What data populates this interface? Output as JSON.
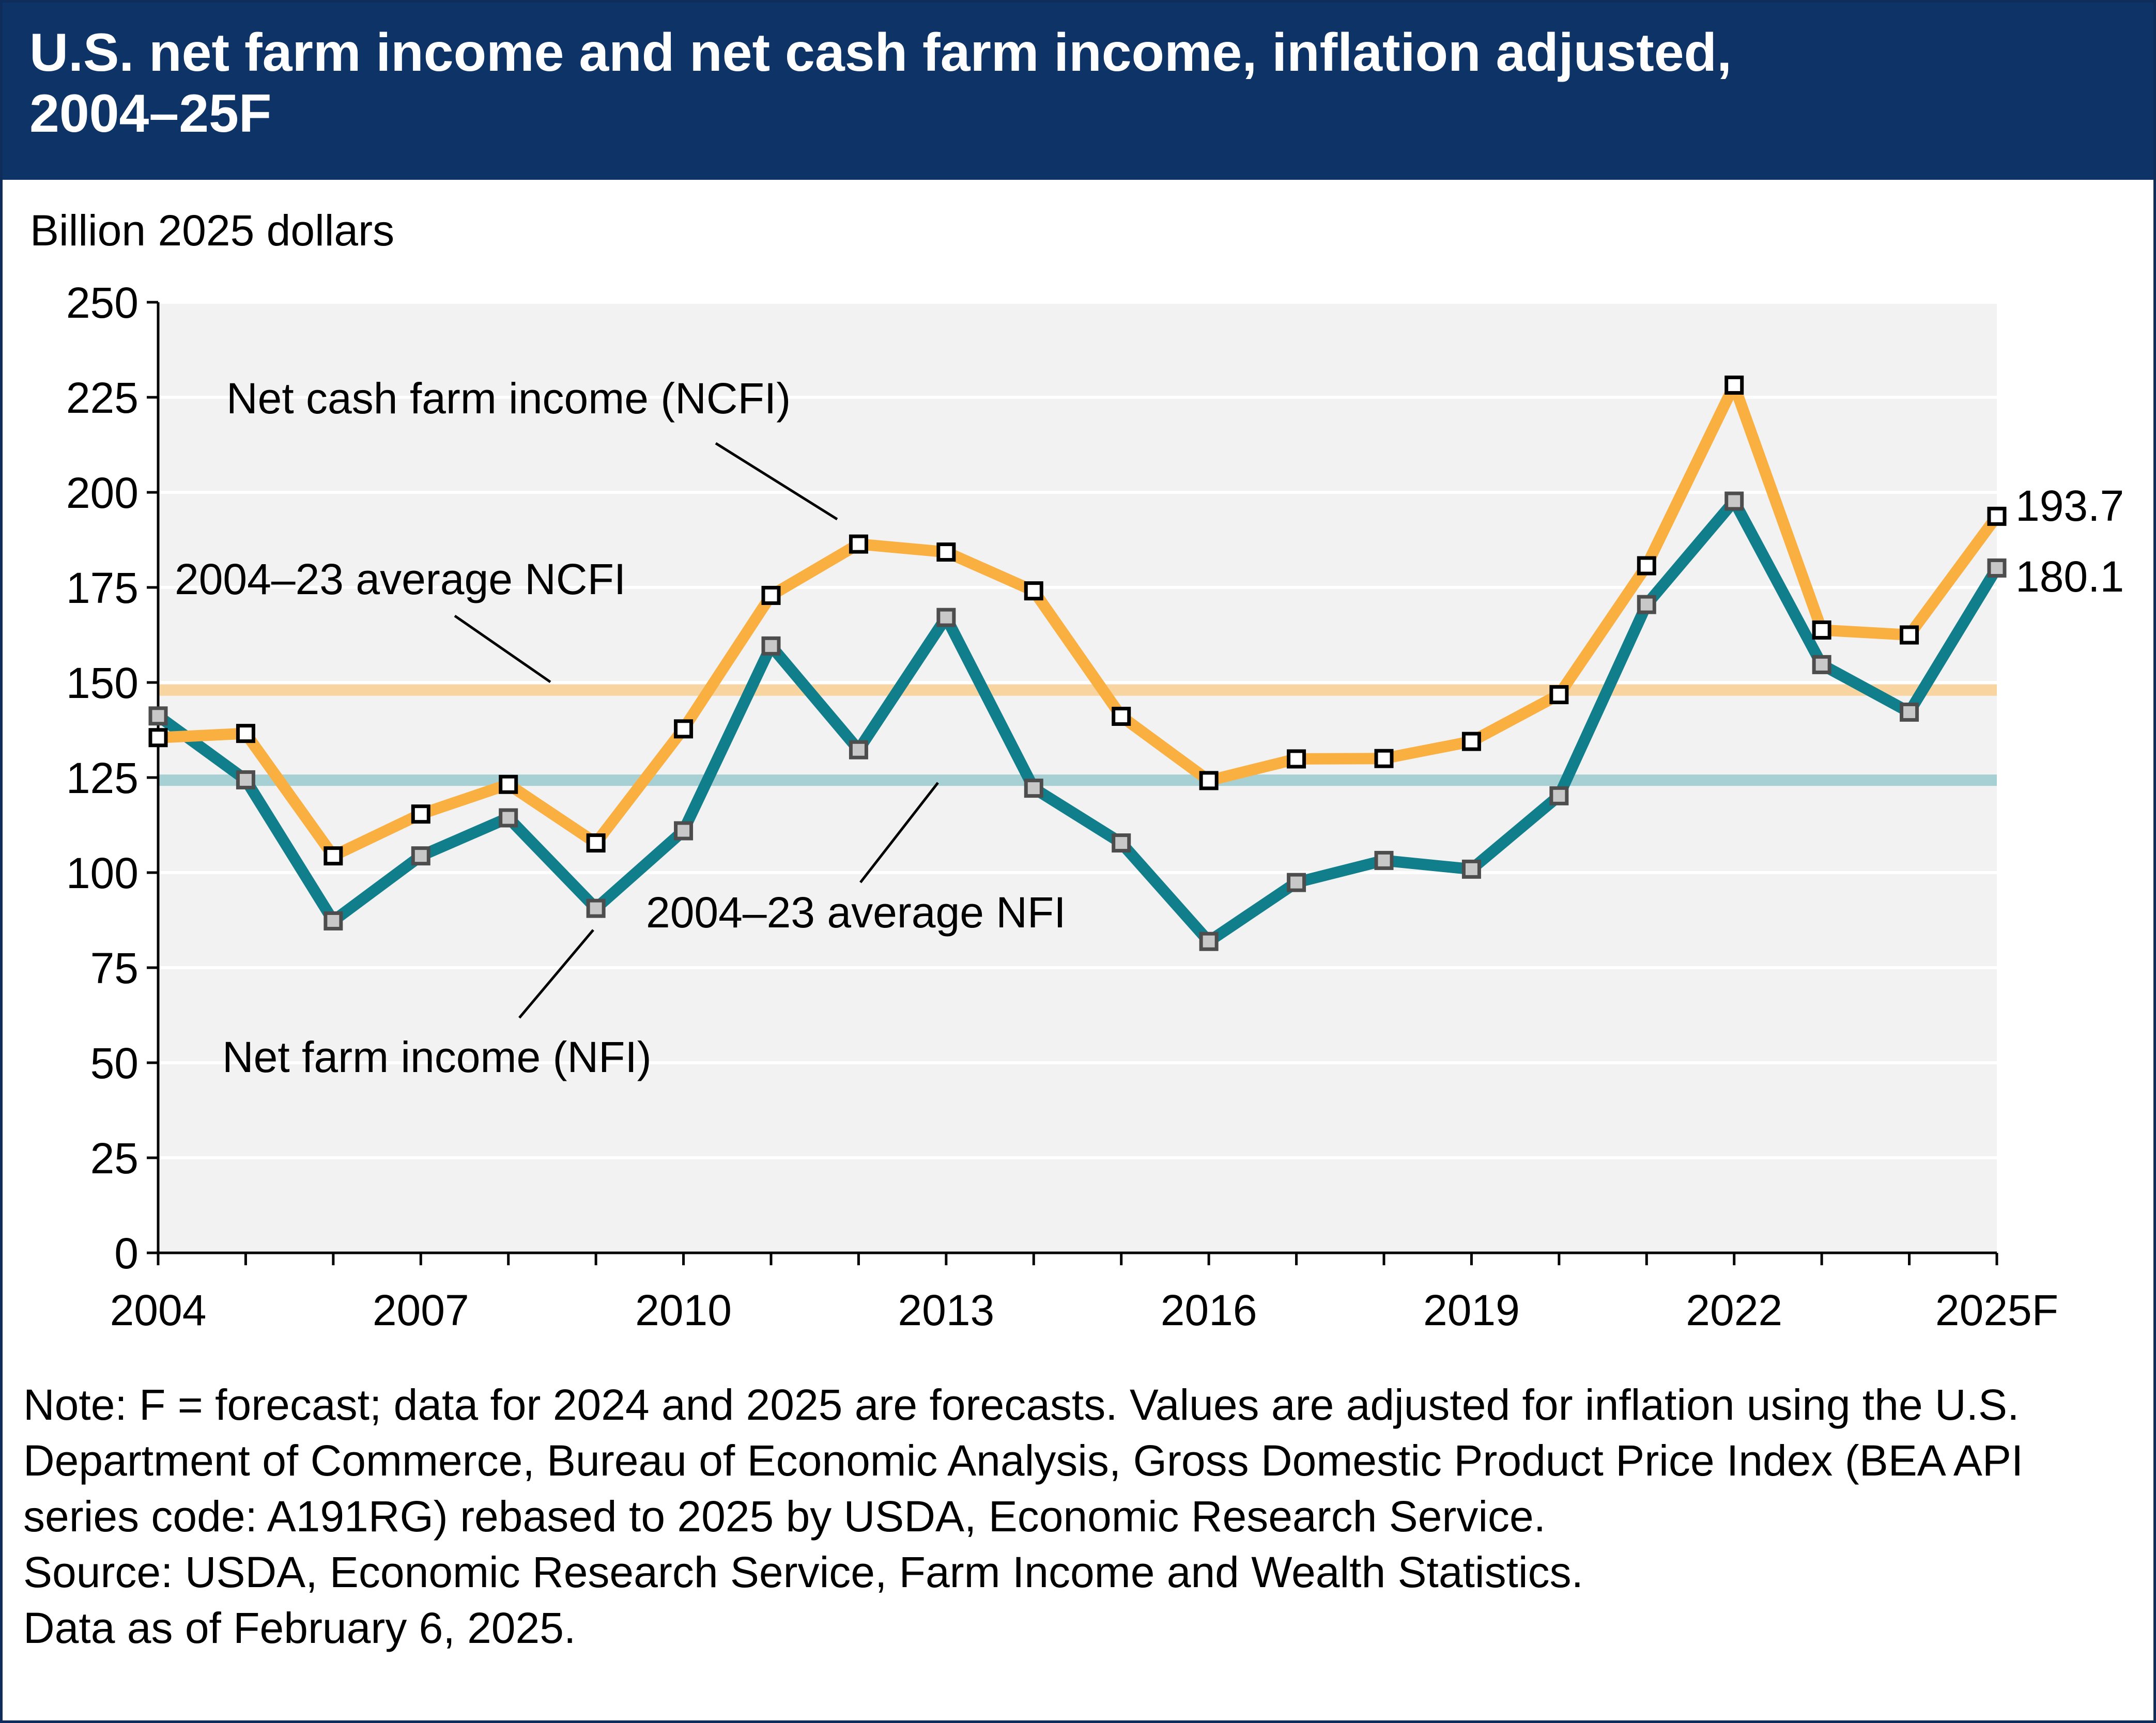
{
  "title": "U.S. net farm income and net cash farm income, inflation adjusted, 2004–25F",
  "note": "Note: F = forecast; data for 2024 and 2025 are forecasts. Values are adjusted for inflation using the U.S. Department of Commerce, Bureau of Economic Analysis, Gross Domestic Product Price Index (BEA API series code: A191RG) rebased to 2025 by USDA, Economic Research Service.",
  "source": "Source: USDA, Economic Research Service, Farm Income and Wealth Statistics.",
  "data_as_of": "Data as of February 6, 2025.",
  "chart_data": {
    "type": "line",
    "title": "U.S. net farm income and net cash farm income, inflation adjusted, 2004–25F",
    "ylabel": "Billion 2025 dollars",
    "xlabel": "",
    "ylim": [
      0,
      250
    ],
    "yticks": [
      0,
      25,
      50,
      75,
      100,
      125,
      150,
      175,
      200,
      225,
      250
    ],
    "x": [
      2004,
      2005,
      2006,
      2007,
      2008,
      2009,
      2010,
      2011,
      2012,
      2013,
      2014,
      2015,
      2016,
      2017,
      2018,
      2019,
      2020,
      2021,
      2022,
      2023,
      2024,
      2025
    ],
    "xtick_labels": [
      {
        "x": 2004,
        "label": "2004"
      },
      {
        "x": 2007,
        "label": "2007"
      },
      {
        "x": 2010,
        "label": "2010"
      },
      {
        "x": 2013,
        "label": "2013"
      },
      {
        "x": 2016,
        "label": "2016"
      },
      {
        "x": 2019,
        "label": "2019"
      },
      {
        "x": 2022,
        "label": "2022"
      },
      {
        "x": 2025,
        "label": "2025F"
      }
    ],
    "grid": true,
    "series": [
      {
        "name": "Net cash farm income (NCFI)",
        "color": "#f9b040",
        "values": [
          135.5,
          136.6,
          104.4,
          115.4,
          123.2,
          107.8,
          137.8,
          172.9,
          186.4,
          184.3,
          174.1,
          141.1,
          124.2,
          129.9,
          130.0,
          134.5,
          146.8,
          180.7,
          228.2,
          163.8,
          162.5,
          193.7
        ]
      },
      {
        "name": "Net farm income (NFI)",
        "color": "#117e8c",
        "values": [
          141.2,
          124.4,
          87.3,
          104.4,
          114.4,
          90.6,
          111.0,
          159.6,
          132.3,
          167.1,
          122.2,
          107.8,
          81.9,
          97.4,
          103.2,
          100.9,
          120.2,
          170.5,
          197.7,
          154.7,
          142.2,
          180.1
        ]
      }
    ],
    "averages": [
      {
        "name": "2004–23 average NCFI",
        "value": 148.0,
        "color": "#f7d4a0"
      },
      {
        "name": "2004–23 average NFI",
        "value": 124.3,
        "color": "#a7d0d4"
      }
    ],
    "end_labels": [
      "193.7",
      "180.1"
    ]
  }
}
